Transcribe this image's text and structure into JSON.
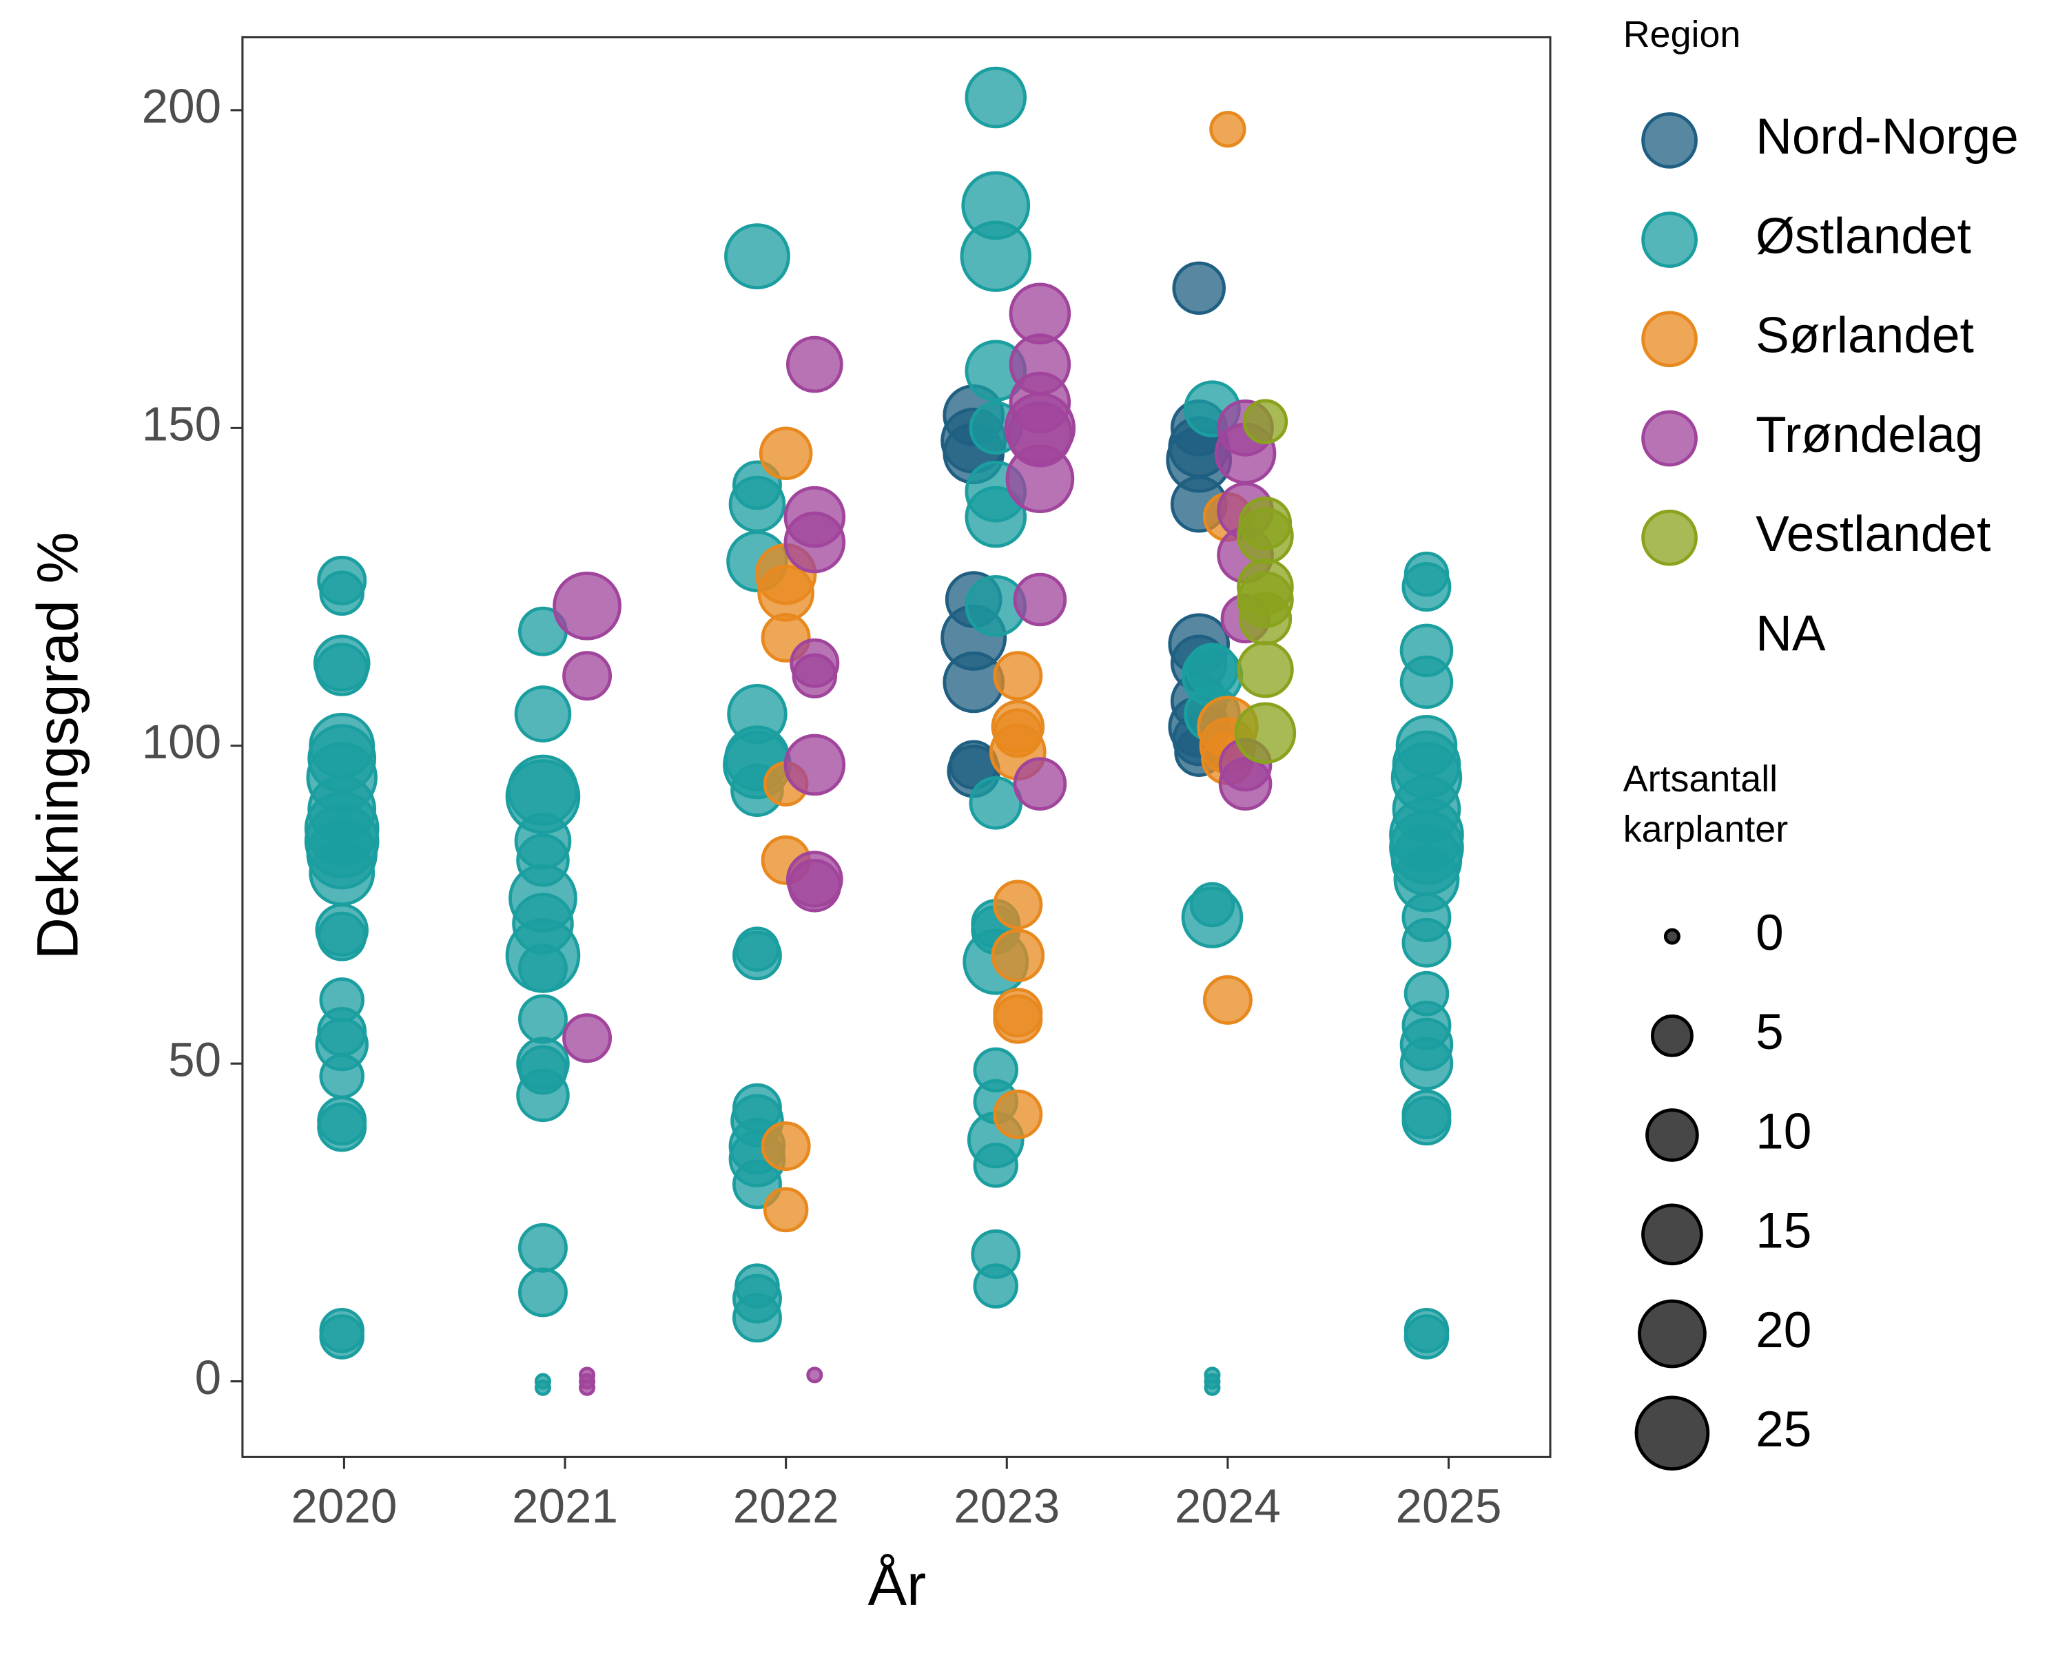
{
  "chart_data": {
    "type": "scatter",
    "x_label": "År",
    "y_label": "Dekningsgrad %",
    "xlim": [
      2019.54,
      2025.46
    ],
    "ylim": [
      -11.9,
      211.5
    ],
    "xticks": [
      2020,
      2021,
      2022,
      2023,
      2024,
      2025
    ],
    "yticks": [
      0,
      50,
      100,
      150,
      200
    ],
    "grid": false,
    "legend_title": "Region",
    "legend_extra": [
      "NA"
    ],
    "size_legend": {
      "title": [
        "Artsantall",
        "karplanter"
      ],
      "values": [
        0,
        5,
        10,
        15,
        20,
        25
      ]
    },
    "series": [
      {
        "name": "Nord-Norge",
        "color": "#1f5f82",
        "x": [
          2022.85,
          2022.85,
          2022.85,
          2022.85,
          2022.85,
          2022.85,
          2022.85,
          2022.85,
          2023.87,
          2023.87,
          2023.87,
          2023.87,
          2023.87,
          2023.87,
          2023.87,
          2023.87,
          2023.87,
          2023.87,
          2023.87
        ],
        "y": [
          152,
          148,
          146,
          123,
          117,
          110,
          97,
          96,
          172,
          150,
          147,
          145,
          138,
          116,
          113,
          107,
          103,
          101,
          99
        ],
        "size": [
          15,
          18,
          15,
          12,
          18,
          15,
          8,
          10,
          10,
          12,
          15,
          18,
          12,
          15,
          12,
          12,
          15,
          10,
          8
        ]
      },
      {
        "name": "Østlandet",
        "color": "#1b9ea0",
        "x": [
          2019.99,
          2019.99,
          2019.99,
          2019.99,
          2019.99,
          2019.99,
          2019.99,
          2019.99,
          2019.99,
          2019.99,
          2019.99,
          2019.99,
          2019.99,
          2019.99,
          2019.99,
          2019.99,
          2019.99,
          2019.99,
          2019.99,
          2019.99,
          2019.99,
          2019.99,
          2020.9,
          2020.9,
          2020.9,
          2020.9,
          2020.9,
          2020.9,
          2020.9,
          2020.9,
          2020.9,
          2020.9,
          2020.9,
          2020.9,
          2020.9,
          2020.9,
          2020.9,
          2020.9,
          2020.9,
          2020.9,
          2021.87,
          2021.87,
          2021.87,
          2021.87,
          2021.87,
          2021.87,
          2021.87,
          2021.87,
          2021.87,
          2021.87,
          2021.87,
          2021.87,
          2021.87,
          2021.87,
          2021.87,
          2021.87,
          2021.87,
          2021.87,
          2022.95,
          2022.95,
          2022.95,
          2022.95,
          2022.95,
          2022.95,
          2022.95,
          2022.95,
          2022.95,
          2022.95,
          2022.95,
          2022.95,
          2022.95,
          2022.95,
          2022.95,
          2022.95,
          2022.95,
          2022.95,
          2023.93,
          2023.93,
          2023.93,
          2023.93,
          2023.93,
          2023.93,
          2023.93,
          2023.93,
          2023.93,
          2024.9,
          2024.9,
          2024.9,
          2024.9,
          2024.9,
          2024.9,
          2024.9,
          2024.9,
          2024.9,
          2024.9,
          2024.9,
          2024.9,
          2024.9,
          2024.9,
          2024.9,
          2024.9,
          2024.9,
          2024.9,
          2024.9,
          2024.9,
          2024.9,
          2024.9
        ],
        "y": [
          126,
          124,
          113,
          112,
          100,
          98,
          95,
          90,
          87,
          85,
          83,
          80,
          71,
          70,
          60,
          55,
          53,
          48,
          41,
          40,
          8,
          7,
          118,
          105,
          93,
          92,
          85,
          82,
          76,
          72,
          67,
          65,
          57,
          50,
          49,
          45,
          21,
          14,
          0,
          -1,
          177,
          141,
          138,
          129,
          105,
          98,
          97,
          93,
          68,
          67,
          43,
          41,
          37,
          35,
          31,
          15,
          13,
          10,
          202,
          185,
          177,
          159,
          150,
          140,
          136,
          122,
          91,
          72,
          71,
          66,
          49,
          44,
          38,
          34,
          20,
          15,
          153,
          111,
          112,
          105,
          75,
          73,
          1,
          0,
          -1,
          127,
          125,
          115,
          110,
          100,
          97,
          95,
          90,
          86,
          84,
          82,
          79,
          73,
          69,
          61,
          56,
          53,
          50,
          42,
          41,
          8,
          7
        ],
        "size": [
          8,
          6,
          12,
          10,
          18,
          20,
          22,
          20,
          25,
          25,
          22,
          18,
          10,
          8,
          6,
          8,
          10,
          6,
          8,
          8,
          6,
          6,
          8,
          12,
          22,
          25,
          12,
          10,
          20,
          15,
          25,
          8,
          8,
          10,
          8,
          10,
          8,
          8,
          0,
          0,
          18,
          8,
          12,
          15,
          14,
          18,
          20,
          10,
          6,
          8,
          8,
          10,
          12,
          12,
          8,
          6,
          8,
          8,
          15,
          20,
          22,
          15,
          10,
          15,
          15,
          15,
          10,
          8,
          8,
          18,
          6,
          6,
          12,
          6,
          8,
          6,
          12,
          15,
          10,
          12,
          6,
          15,
          0,
          0,
          0,
          6,
          8,
          10,
          10,
          15,
          20,
          22,
          20,
          25,
          25,
          22,
          18,
          8,
          8,
          6,
          8,
          10,
          10,
          8,
          8,
          6,
          6
        ]
      },
      {
        "name": "Sørlandet",
        "color": "#e8891f",
        "x": [
          2022.0,
          2022.0,
          2022.0,
          2022.0,
          2022.0,
          2022.0,
          2022.0,
          2022.0,
          2023.05,
          2023.05,
          2023.05,
          2023.05,
          2023.05,
          2023.05,
          2023.05,
          2023.05,
          2023.05,
          2024.0,
          2024.0,
          2024.0,
          2024.0,
          2024.0,
          2024.0
        ],
        "y": [
          146,
          127,
          124,
          117,
          94,
          82,
          37,
          27,
          111,
          103,
          102,
          99,
          75,
          67,
          58,
          57,
          42,
          197,
          136,
          103,
          100,
          98,
          60
        ],
        "size": [
          10,
          15,
          12,
          8,
          6,
          8,
          8,
          6,
          8,
          10,
          8,
          12,
          8,
          10,
          8,
          8,
          8,
          3,
          8,
          15,
          12,
          10,
          8
        ]
      },
      {
        "name": "Trøndelag",
        "color": "#a0449c",
        "x": [
          2021.1,
          2021.1,
          2021.1,
          2021.1,
          2021.1,
          2021.1,
          2022.13,
          2022.13,
          2022.13,
          2022.13,
          2022.13,
          2022.13,
          2022.13,
          2022.13,
          2022.13,
          2023.15,
          2023.15,
          2023.15,
          2023.15,
          2023.15,
          2023.15,
          2023.15,
          2023.15,
          2024.08,
          2024.08,
          2024.08,
          2024.08,
          2024.08,
          2024.08,
          2024.08
        ],
        "y": [
          122,
          111,
          54,
          1,
          0,
          -1,
          160,
          136,
          132,
          113,
          111,
          97,
          79,
          78,
          1,
          168,
          160,
          154,
          150,
          149,
          142,
          123,
          94,
          150,
          146,
          137,
          130,
          120,
          97,
          94
        ],
        "size": [
          20,
          8,
          8,
          0,
          0,
          0,
          12,
          15,
          15,
          8,
          6,
          15,
          12,
          10,
          0,
          15,
          15,
          15,
          22,
          18,
          20,
          10,
          10,
          12,
          15,
          12,
          12,
          8,
          10,
          10
        ]
      },
      {
        "name": "Vestlandet",
        "color": "#8aa31e",
        "x": [
          2024.17,
          2024.17,
          2024.17,
          2024.17,
          2024.17,
          2024.17,
          2024.17,
          2024.17
        ],
        "y": [
          151,
          135,
          133,
          125,
          123,
          120,
          112,
          102
        ],
        "size": [
          6,
          10,
          12,
          12,
          12,
          10,
          12,
          15
        ]
      }
    ]
  }
}
